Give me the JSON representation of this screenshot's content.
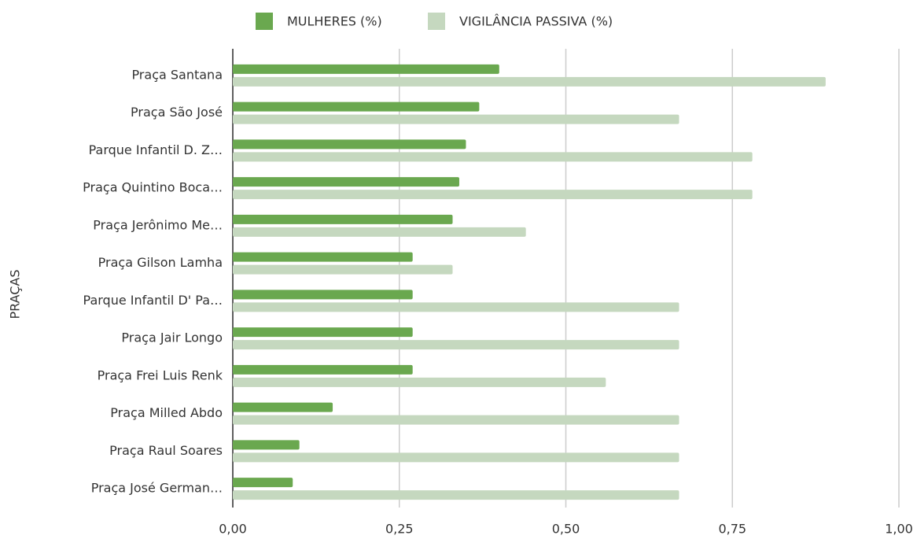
{
  "chart_data": {
    "type": "bar",
    "orientation": "horizontal",
    "y_axis_label": "PRAÇAS",
    "categories": [
      "Praça Santana",
      "Praça São José",
      "Parque Infantil D. Z…",
      "Praça Quintino Boca…",
      "Praça Jerônimo Me…",
      "Praça Gilson Lamha",
      "Parque Infantil D' Pa…",
      "Praça Jair Longo",
      "Praça Frei Luis Renk",
      "Praça Milled Abdo",
      "Praça Raul Soares",
      "Praça José German…"
    ],
    "series": [
      {
        "name": "MULHERES (%)",
        "color": "#6aa84f",
        "values": [
          0.4,
          0.37,
          0.35,
          0.34,
          0.33,
          0.27,
          0.27,
          0.27,
          0.27,
          0.15,
          0.1,
          0.09
        ]
      },
      {
        "name": "VIGILÂNCIA PASSIVA (%)",
        "color": "#c5d8bf",
        "values": [
          0.89,
          0.67,
          0.78,
          0.78,
          0.44,
          0.33,
          0.67,
          0.67,
          0.56,
          0.67,
          0.67,
          0.67
        ]
      }
    ],
    "xlim": [
      0,
      1
    ],
    "xticks": [
      {
        "value": 0,
        "label": "0,00"
      },
      {
        "value": 0.25,
        "label": "0,25"
      },
      {
        "value": 0.5,
        "label": "0,50"
      },
      {
        "value": 0.75,
        "label": "0,75"
      },
      {
        "value": 1,
        "label": "1,00"
      }
    ],
    "grid": true,
    "legend": "top"
  }
}
